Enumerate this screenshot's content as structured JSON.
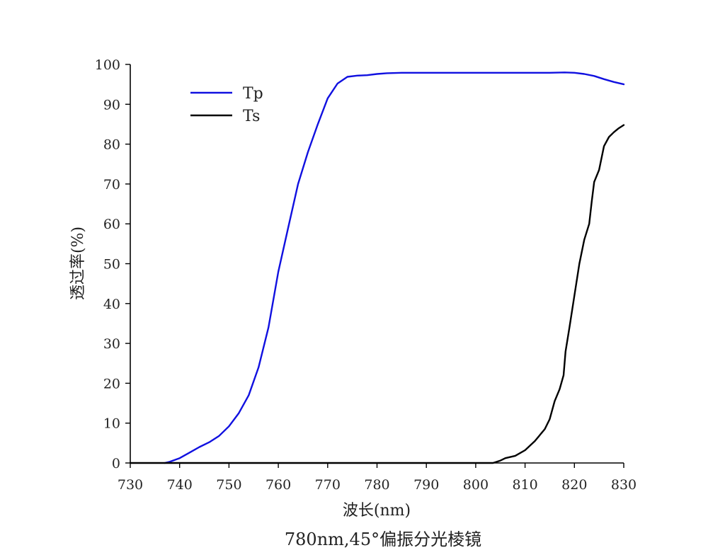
{
  "chart_data": {
    "type": "line",
    "title": "780nm,45°偏振分光棱镜",
    "xlabel": "波长(nm)",
    "ylabel": "透过率(%)",
    "xlim": [
      730,
      830
    ],
    "ylim": [
      0,
      100
    ],
    "xticks": [
      730,
      740,
      750,
      760,
      770,
      780,
      790,
      800,
      810,
      820,
      830
    ],
    "yticks": [
      0,
      10,
      20,
      30,
      40,
      50,
      60,
      70,
      80,
      90,
      100
    ],
    "grid": false,
    "legend_position": "top-left",
    "series": [
      {
        "name": "Tp",
        "color": "#1010e0",
        "x": [
          737,
          738,
          740,
          742,
          744,
          746,
          748,
          750,
          752,
          754,
          756,
          758,
          760,
          762,
          764,
          766,
          768,
          770,
          772,
          774,
          776,
          778,
          780,
          782,
          785,
          790,
          800,
          810,
          815,
          818,
          820,
          822,
          824,
          826,
          828,
          830
        ],
        "y": [
          0,
          0.3,
          1.2,
          2.6,
          4.0,
          5.2,
          6.8,
          9.2,
          12.5,
          17.0,
          24.0,
          34.0,
          48.0,
          59.0,
          70.0,
          78.0,
          85.0,
          91.5,
          95.2,
          96.9,
          97.2,
          97.3,
          97.6,
          97.8,
          97.9,
          97.9,
          97.9,
          97.9,
          97.9,
          98.0,
          97.9,
          97.6,
          97.1,
          96.3,
          95.6,
          95.0
        ]
      },
      {
        "name": "Ts",
        "color": "#000000",
        "x": [
          730,
          803.5,
          805,
          806,
          808,
          810,
          812,
          814,
          815,
          816,
          817,
          817.8,
          818.2,
          819,
          820,
          821,
          822,
          823,
          823.5,
          824,
          825,
          826,
          827,
          828,
          829,
          830
        ],
        "y": [
          0,
          0,
          0.6,
          1.2,
          1.8,
          3.2,
          5.5,
          8.5,
          11.0,
          15.5,
          18.5,
          22.0,
          28.0,
          34.0,
          42.0,
          50.0,
          56.0,
          60.0,
          65.5,
          70.5,
          73.5,
          79.5,
          81.8,
          83.0,
          84.0,
          84.8
        ]
      }
    ]
  }
}
